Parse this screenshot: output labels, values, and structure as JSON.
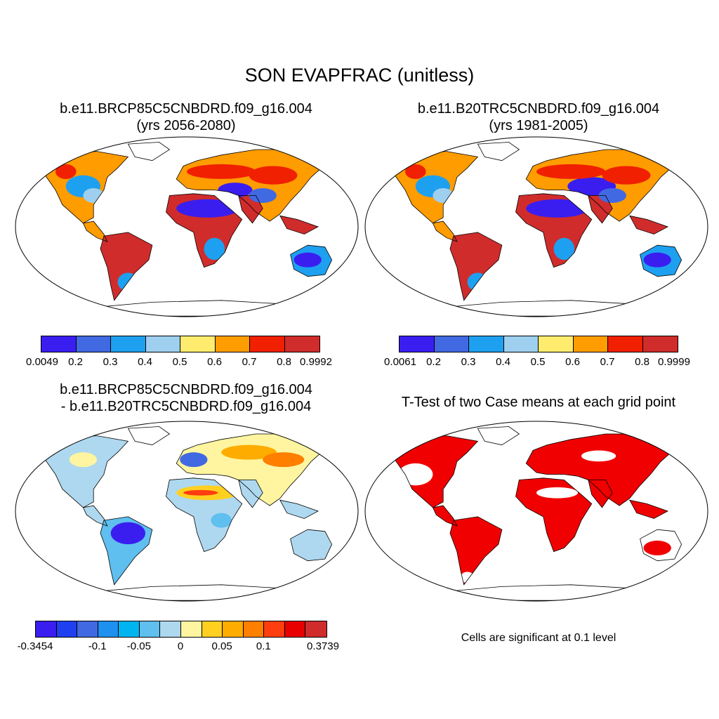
{
  "title": "SON EVAPFRAC (unitless)",
  "panels": {
    "top_left": {
      "line1": "b.e11.BRCP85C5CNBDRD.f09_g16.004",
      "line2": "(yrs 2056-2080)",
      "colorbar": {
        "colors": [
          "#3a1ef0",
          "#4169e1",
          "#1ea0f0",
          "#9ecfee",
          "#ffec6e",
          "#ff9c00",
          "#f02000",
          "#d02c2c"
        ],
        "labels": [
          "0.0049",
          "0.2",
          "0.3",
          "0.4",
          "0.5",
          "0.6",
          "0.7",
          "0.8",
          "0.9992"
        ]
      }
    },
    "top_right": {
      "line1": "b.e11.B20TRC5CNBDRD.f09_g16.004",
      "line2": "(yrs 1981-2005)",
      "colorbar": {
        "colors": [
          "#3a1ef0",
          "#4169e1",
          "#1ea0f0",
          "#9ecfee",
          "#ffec6e",
          "#ff9c00",
          "#f02000",
          "#d02c2c"
        ],
        "labels": [
          "0.0061",
          "0.2",
          "0.3",
          "0.4",
          "0.5",
          "0.6",
          "0.7",
          "0.8",
          "0.9999"
        ]
      }
    },
    "bottom_left": {
      "line1": "b.e11.BRCP85C5CNBDRD.f09_g16.004",
      "line2": "- b.e11.B20TRC5CNBDRD.f09_g16.004",
      "colorbar": {
        "colors": [
          "#3a1ef0",
          "#2040f0",
          "#4169e1",
          "#1e90f0",
          "#00b4f0",
          "#5fbfef",
          "#aed8ef",
          "#fff5a0",
          "#ffd020",
          "#ffac00",
          "#ff7f00",
          "#ff3e10",
          "#e80000",
          "#d02c2c"
        ],
        "labels": [
          "-0.3454",
          "-0.1",
          "-0.05",
          "0",
          "0.05",
          "0.1",
          "0.3739"
        ]
      }
    },
    "bottom_right": {
      "line1": "T-Test of two Case means at each grid point",
      "note": "Cells are significant at 0.1 level",
      "significance_color": "#f00000"
    }
  }
}
